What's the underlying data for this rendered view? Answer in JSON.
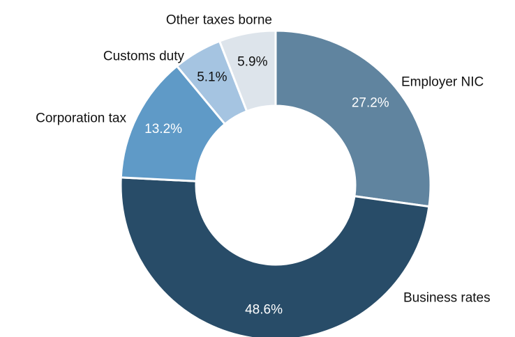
{
  "chart_data": {
    "type": "pie",
    "donut": true,
    "title": "",
    "categories": [
      "Employer NIC",
      "Business rates",
      "Corporation tax",
      "Customs duty",
      "Other taxes borne"
    ],
    "values": [
      27.2,
      48.6,
      13.2,
      5.1,
      5.9
    ],
    "value_labels": [
      "27.2%",
      "48.6%",
      "13.2%",
      "5.1%",
      "5.9%"
    ],
    "colors": [
      "#60849f",
      "#284c68",
      "#5f9ac7",
      "#a5c4e1",
      "#dde4eb"
    ],
    "label_colors": [
      "#ffffff",
      "#ffffff",
      "#ffffff",
      "#111111",
      "#111111"
    ],
    "start": "top, clockwise",
    "legend": "none (category labels placed next to slices)"
  }
}
